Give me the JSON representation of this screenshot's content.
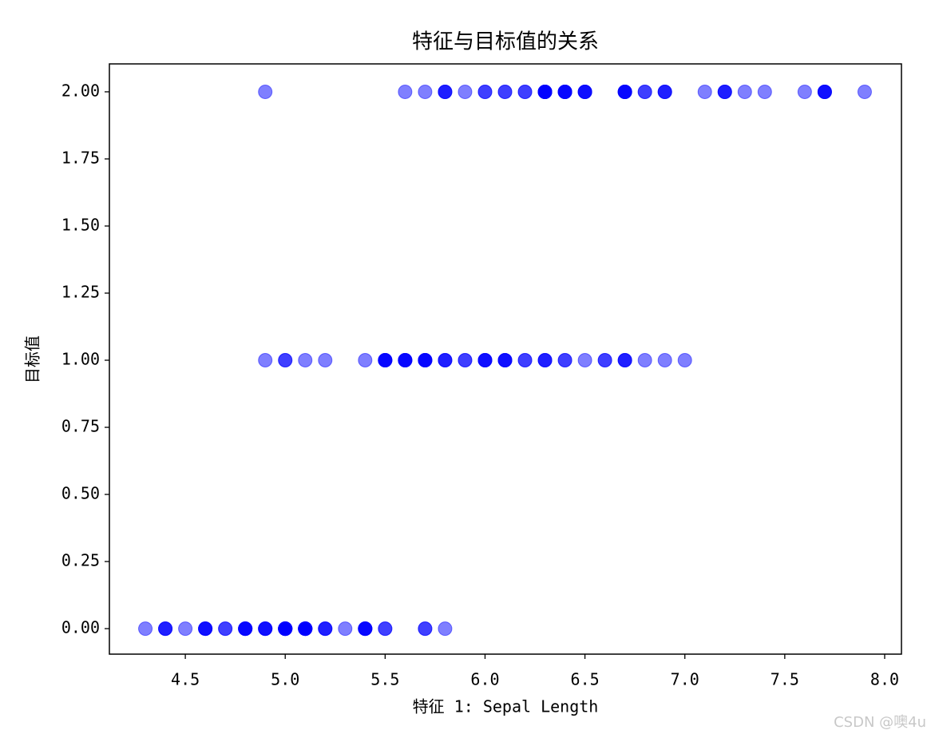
{
  "chart_data": {
    "type": "scatter",
    "title": "特征与目标值的关系",
    "x_label": "特征 1: Sepal Length",
    "y_label": "目标值",
    "color": "#0000ff",
    "alpha": 0.5,
    "x": [
      5.1,
      4.9,
      4.7,
      4.6,
      5.0,
      5.4,
      4.6,
      5.0,
      4.4,
      4.9,
      5.4,
      4.8,
      4.8,
      4.3,
      5.8,
      5.7,
      5.4,
      5.1,
      5.7,
      5.1,
      5.4,
      5.1,
      4.6,
      5.1,
      4.8,
      5.0,
      5.0,
      5.2,
      5.2,
      4.7,
      4.8,
      5.4,
      5.2,
      5.5,
      4.9,
      5.0,
      5.5,
      4.9,
      4.4,
      5.1,
      5.0,
      4.5,
      4.4,
      5.0,
      5.1,
      4.8,
      5.1,
      4.6,
      5.3,
      5.0,
      7.0,
      6.4,
      6.9,
      5.5,
      6.5,
      5.7,
      6.3,
      4.9,
      6.6,
      5.2,
      5.0,
      5.9,
      6.0,
      6.1,
      5.6,
      6.7,
      5.6,
      5.8,
      6.2,
      5.6,
      5.9,
      6.1,
      6.3,
      6.1,
      6.4,
      6.6,
      6.8,
      6.7,
      6.0,
      5.7,
      5.5,
      5.5,
      5.8,
      6.0,
      5.4,
      6.0,
      6.7,
      6.3,
      5.6,
      5.5,
      5.5,
      6.1,
      5.8,
      5.0,
      5.6,
      5.7,
      5.7,
      6.2,
      5.1,
      5.7,
      6.3,
      5.8,
      7.1,
      6.3,
      6.5,
      7.6,
      4.9,
      7.3,
      6.7,
      7.2,
      6.5,
      6.4,
      6.8,
      5.7,
      5.8,
      6.4,
      6.5,
      7.7,
      7.7,
      6.0,
      6.9,
      5.6,
      7.7,
      6.3,
      6.7,
      7.2,
      6.2,
      6.1,
      6.4,
      7.2,
      7.4,
      7.9,
      6.4,
      6.3,
      6.1,
      7.7,
      6.3,
      6.4,
      6.0,
      6.9,
      6.7,
      6.9,
      5.8,
      6.8,
      6.7,
      6.7,
      6.3,
      6.5,
      6.2,
      5.9
    ],
    "y": [
      0,
      0,
      0,
      0,
      0,
      0,
      0,
      0,
      0,
      0,
      0,
      0,
      0,
      0,
      0,
      0,
      0,
      0,
      0,
      0,
      0,
      0,
      0,
      0,
      0,
      0,
      0,
      0,
      0,
      0,
      0,
      0,
      0,
      0,
      0,
      0,
      0,
      0,
      0,
      0,
      0,
      0,
      0,
      0,
      0,
      0,
      0,
      0,
      0,
      0,
      1,
      1,
      1,
      1,
      1,
      1,
      1,
      1,
      1,
      1,
      1,
      1,
      1,
      1,
      1,
      1,
      1,
      1,
      1,
      1,
      1,
      1,
      1,
      1,
      1,
      1,
      1,
      1,
      1,
      1,
      1,
      1,
      1,
      1,
      1,
      1,
      1,
      1,
      1,
      1,
      1,
      1,
      1,
      1,
      1,
      1,
      1,
      1,
      1,
      1,
      2,
      2,
      2,
      2,
      2,
      2,
      2,
      2,
      2,
      2,
      2,
      2,
      2,
      2,
      2,
      2,
      2,
      2,
      2,
      2,
      2,
      2,
      2,
      2,
      2,
      2,
      2,
      2,
      2,
      2,
      2,
      2,
      2,
      2,
      2,
      2,
      2,
      2,
      2,
      2,
      2,
      2,
      2,
      2,
      2,
      2,
      2,
      2,
      2,
      2
    ],
    "xlim": [
      4.12,
      8.084
    ],
    "ylim": [
      -0.095,
      2.104
    ],
    "xticks": [
      4.5,
      {
        "value": 5.0,
        "label": "5.0"
      },
      5.5,
      {
        "value": 6.0,
        "label": "6.0"
      },
      6.5,
      {
        "value": 7.0,
        "label": "7.0"
      },
      7.5,
      {
        "value": 8.0,
        "label": "8.0"
      }
    ],
    "yticks": [
      {
        "value": 0,
        "label": "0.00"
      },
      {
        "value": 0.25,
        "label": "0.25"
      },
      {
        "value": 0.5,
        "label": "0.50"
      },
      {
        "value": 0.75,
        "label": "0.75"
      },
      {
        "value": 1,
        "label": "1.00"
      },
      {
        "value": 1.25,
        "label": "1.25"
      },
      {
        "value": 1.5,
        "label": "1.50"
      },
      {
        "value": 1.75,
        "label": "1.75"
      },
      {
        "value": 2,
        "label": "2.00"
      }
    ]
  },
  "watermark": "CSDN @噢4u"
}
